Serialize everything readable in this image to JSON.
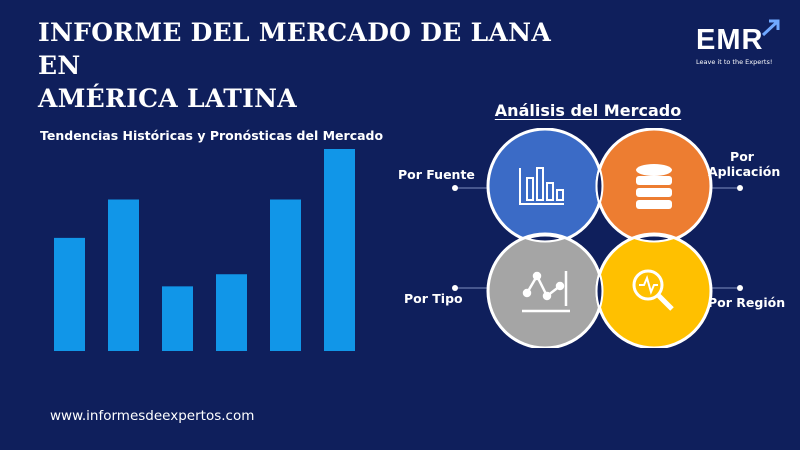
{
  "header": {
    "title_line1": "INFORME DEL MERCADO DE LANA EN",
    "title_line2": "AMÉRICA LATINA"
  },
  "logo": {
    "text": "EMR",
    "tagline": "Leave it to the Experts!",
    "icon": "arrow-up-right-icon"
  },
  "chart_data": {
    "type": "bar",
    "title": "Tendencias Históricas y Pronósticas del Mercado",
    "values": [
      0.56,
      0.75,
      0.32,
      0.38,
      0.75,
      1.0
    ],
    "color": "#1196e8"
  },
  "analysis": {
    "heading": "Análisis del Mercado",
    "segments": [
      {
        "label": "Por Fuente",
        "color": "#3b6bc6",
        "icon": "bar-chart-icon"
      },
      {
        "label_line1": "Por",
        "label_line2": "Aplicación",
        "color": "#ed7d31",
        "icon": "database-icon"
      },
      {
        "label": "Por Tipo",
        "color": "#a5a5a5",
        "icon": "line-chart-icon"
      },
      {
        "label": "Por Región",
        "color": "#ffc000",
        "icon": "magnifier-icon"
      }
    ]
  },
  "footer": {
    "url": "www.informesdeexpertos.com"
  }
}
